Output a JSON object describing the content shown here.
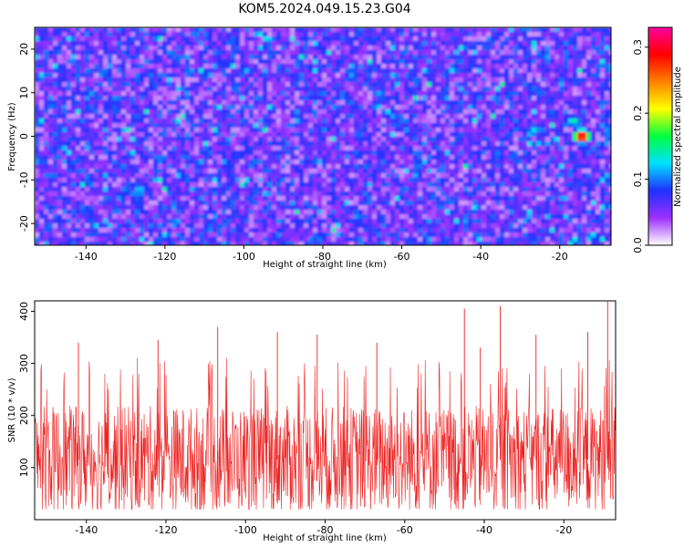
{
  "title": "KOM5.2024.049.15.23.G04",
  "colors": {
    "snr_line": "#ee2222",
    "frame": "#000000"
  },
  "chart_data": [
    {
      "type": "heatmap",
      "xlabel": "Height of straight line (km)",
      "ylabel": "Frequency (Hz)",
      "xlim": [
        -153,
        -7
      ],
      "ylim": [
        -25,
        25
      ],
      "x_ticks": [
        "-140",
        "-120",
        "-100",
        "-80",
        "-60",
        "-40",
        "-20"
      ],
      "y_ticks": [
        "-20",
        "-10",
        "0",
        "10",
        "20"
      ],
      "colorbar": {
        "label": "Normalized spectral amplitude",
        "range": [
          0.0,
          0.33
        ],
        "ticks": [
          "0.0",
          "0.1",
          "0.2",
          "0.3"
        ],
        "colormap": [
          "#ffffff",
          "#9b30ff",
          "#2030ff",
          "#00e0ff",
          "#00ff40",
          "#ffff00",
          "#ff8000",
          "#ff0000",
          "#ff00a0"
        ]
      },
      "peak": {
        "x": -15,
        "y": 0.5,
        "value": 0.33
      },
      "secondary_features": [
        {
          "x": -17,
          "y": 4,
          "value": 0.15
        },
        {
          "x": -27,
          "y": 2,
          "value": 0.13
        },
        {
          "x": -127,
          "y": -12,
          "value": 0.13
        }
      ],
      "background_level": [
        0.02,
        0.1
      ],
      "grid": false
    },
    {
      "type": "line",
      "xlabel": "Height of straight line (km)",
      "ylabel": "SNR (10 * v/v)",
      "xlim": [
        -153,
        -7
      ],
      "ylim": [
        0,
        420
      ],
      "x_ticks": [
        "-140",
        "-120",
        "-100",
        "-80",
        "-60",
        "-40",
        "-20"
      ],
      "y_ticks": [
        "100",
        "200",
        "300",
        "400"
      ],
      "noise_band": [
        20,
        250
      ],
      "mean_level": 115,
      "peaks": [
        {
          "x": -142,
          "y": 340
        },
        {
          "x": -122,
          "y": 345
        },
        {
          "x": -107,
          "y": 370
        },
        {
          "x": -92,
          "y": 360
        },
        {
          "x": -82,
          "y": 355
        },
        {
          "x": -67,
          "y": 340
        },
        {
          "x": -45,
          "y": 405
        },
        {
          "x": -41,
          "y": 330
        },
        {
          "x": -36,
          "y": 410
        },
        {
          "x": -27,
          "y": 355
        },
        {
          "x": -14,
          "y": 360
        },
        {
          "x": -9,
          "y": 420
        }
      ],
      "grid": false
    }
  ]
}
